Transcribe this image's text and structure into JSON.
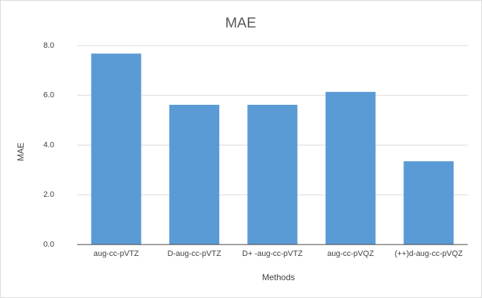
{
  "chart_data": {
    "type": "bar",
    "title": "MAE",
    "x_label": "Methods",
    "y_label": "MAE",
    "categories": [
      "aug-cc-pVTZ",
      "D-aug-cc-pVTZ",
      "D+ -aug-cc-pVTZ",
      "aug-cc-pVQZ",
      "(++)d-aug-cc-pVQZ"
    ],
    "values": [
      7.68,
      5.62,
      5.62,
      6.14,
      3.35
    ],
    "color": "#5b9bd5",
    "ylim": [
      0,
      8
    ],
    "yticks": [
      {
        "value": 0,
        "label": "0.0"
      },
      {
        "value": 2,
        "label": "2.0"
      },
      {
        "value": 4,
        "label": "4.0"
      },
      {
        "value": 6,
        "label": "6.0"
      },
      {
        "value": 8,
        "label": "8.0"
      }
    ],
    "grid": true
  }
}
